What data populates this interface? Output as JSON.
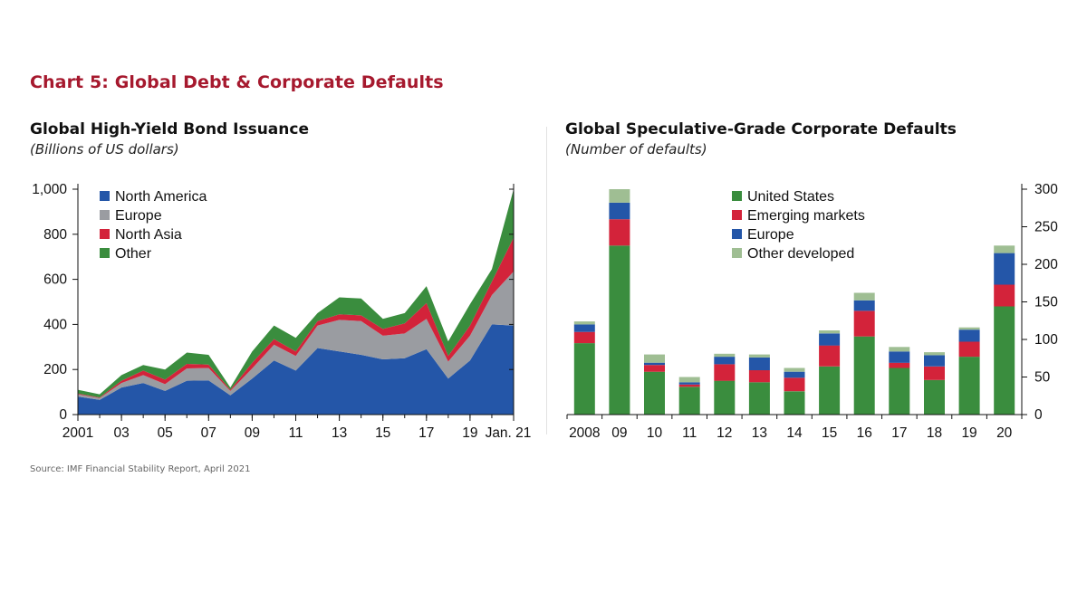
{
  "page": {
    "title": "Chart 5: Global Debt & Corporate Defaults",
    "source": "Source: IMF Financial Stability Report, April 2021"
  },
  "colors": {
    "north_america": "#2456a8",
    "europe": "#9a9ca1",
    "north_asia": "#d3233a",
    "other": "#3a8d3e",
    "united_states": "#3a8d3e",
    "emerging_markets": "#d3233a",
    "europe_defaults": "#2456a8",
    "other_developed": "#9fbe93",
    "title": "#a6192e"
  },
  "chart_data": [
    {
      "type": "area",
      "stacked": true,
      "title": "Global High-Yield Bond Issuance",
      "subtitle": "(Billions of US dollars)",
      "x": [
        2001,
        2002,
        2003,
        2004,
        2005,
        2006,
        2007,
        2008,
        2009,
        2010,
        2011,
        2012,
        2013,
        2014,
        2015,
        2016,
        2017,
        2018,
        2019,
        2020,
        2021
      ],
      "xticks": [
        2001,
        2003,
        2005,
        2007,
        2009,
        2011,
        2013,
        2015,
        2017,
        2019,
        2021
      ],
      "xtick_labels": [
        "2001",
        "03",
        "05",
        "07",
        "09",
        "11",
        "13",
        "15",
        "17",
        "19",
        "Jan. 21"
      ],
      "yticks": [
        0,
        200,
        400,
        600,
        800,
        1000
      ],
      "ytick_labels": [
        "0",
        "200",
        "400",
        "600",
        "800",
        "1,000"
      ],
      "ylim": [
        0,
        1000
      ],
      "legend_position": "top-left",
      "series": [
        {
          "name": "North America",
          "color_key": "north_america",
          "values": [
            80,
            65,
            120,
            140,
            105,
            150,
            152,
            85,
            160,
            240,
            195,
            295,
            280,
            265,
            245,
            250,
            290,
            160,
            240,
            400,
            395
          ]
        },
        {
          "name": "Europe",
          "color_key": "europe",
          "values": [
            10,
            8,
            20,
            35,
            30,
            55,
            55,
            20,
            45,
            70,
            65,
            100,
            140,
            150,
            105,
            110,
            135,
            75,
            110,
            130,
            240
          ]
        },
        {
          "name": "North Asia",
          "color_key": "north_asia",
          "values": [
            3,
            3,
            10,
            20,
            20,
            20,
            15,
            5,
            25,
            25,
            20,
            20,
            25,
            25,
            30,
            45,
            70,
            25,
            45,
            60,
            150
          ]
        },
        {
          "name": "Other",
          "color_key": "other",
          "values": [
            17,
            14,
            25,
            25,
            45,
            50,
            43,
            10,
            50,
            60,
            60,
            35,
            75,
            75,
            45,
            45,
            75,
            65,
            95,
            55,
            215
          ]
        }
      ]
    },
    {
      "type": "bar",
      "stacked": true,
      "title": "Global Speculative-Grade Corporate Defaults",
      "subtitle": "(Number of defaults)",
      "categories": [
        "2008",
        "09",
        "10",
        "11",
        "12",
        "13",
        "14",
        "15",
        "16",
        "17",
        "18",
        "19",
        "20"
      ],
      "yticks": [
        0,
        50,
        100,
        150,
        200,
        250,
        300
      ],
      "ylim": [
        0,
        300
      ],
      "y_axis_side": "right",
      "legend_position": "top-center",
      "series": [
        {
          "name": "United States",
          "color_key": "united_states",
          "values": [
            95,
            225,
            57,
            37,
            45,
            43,
            31,
            64,
            104,
            62,
            46,
            77,
            144
          ]
        },
        {
          "name": "Emerging markets",
          "color_key": "emerging_markets",
          "values": [
            15,
            35,
            9,
            3,
            22,
            16,
            18,
            28,
            34,
            7,
            18,
            20,
            29
          ]
        },
        {
          "name": "Europe",
          "color_key": "europe_defaults",
          "values": [
            10,
            22,
            3,
            3,
            10,
            17,
            8,
            16,
            14,
            15,
            15,
            16,
            42
          ]
        },
        {
          "name": "Other developed",
          "color_key": "other_developed",
          "values": [
            4,
            18,
            11,
            7,
            4,
            4,
            5,
            4,
            10,
            6,
            4,
            3,
            10
          ]
        }
      ]
    }
  ]
}
